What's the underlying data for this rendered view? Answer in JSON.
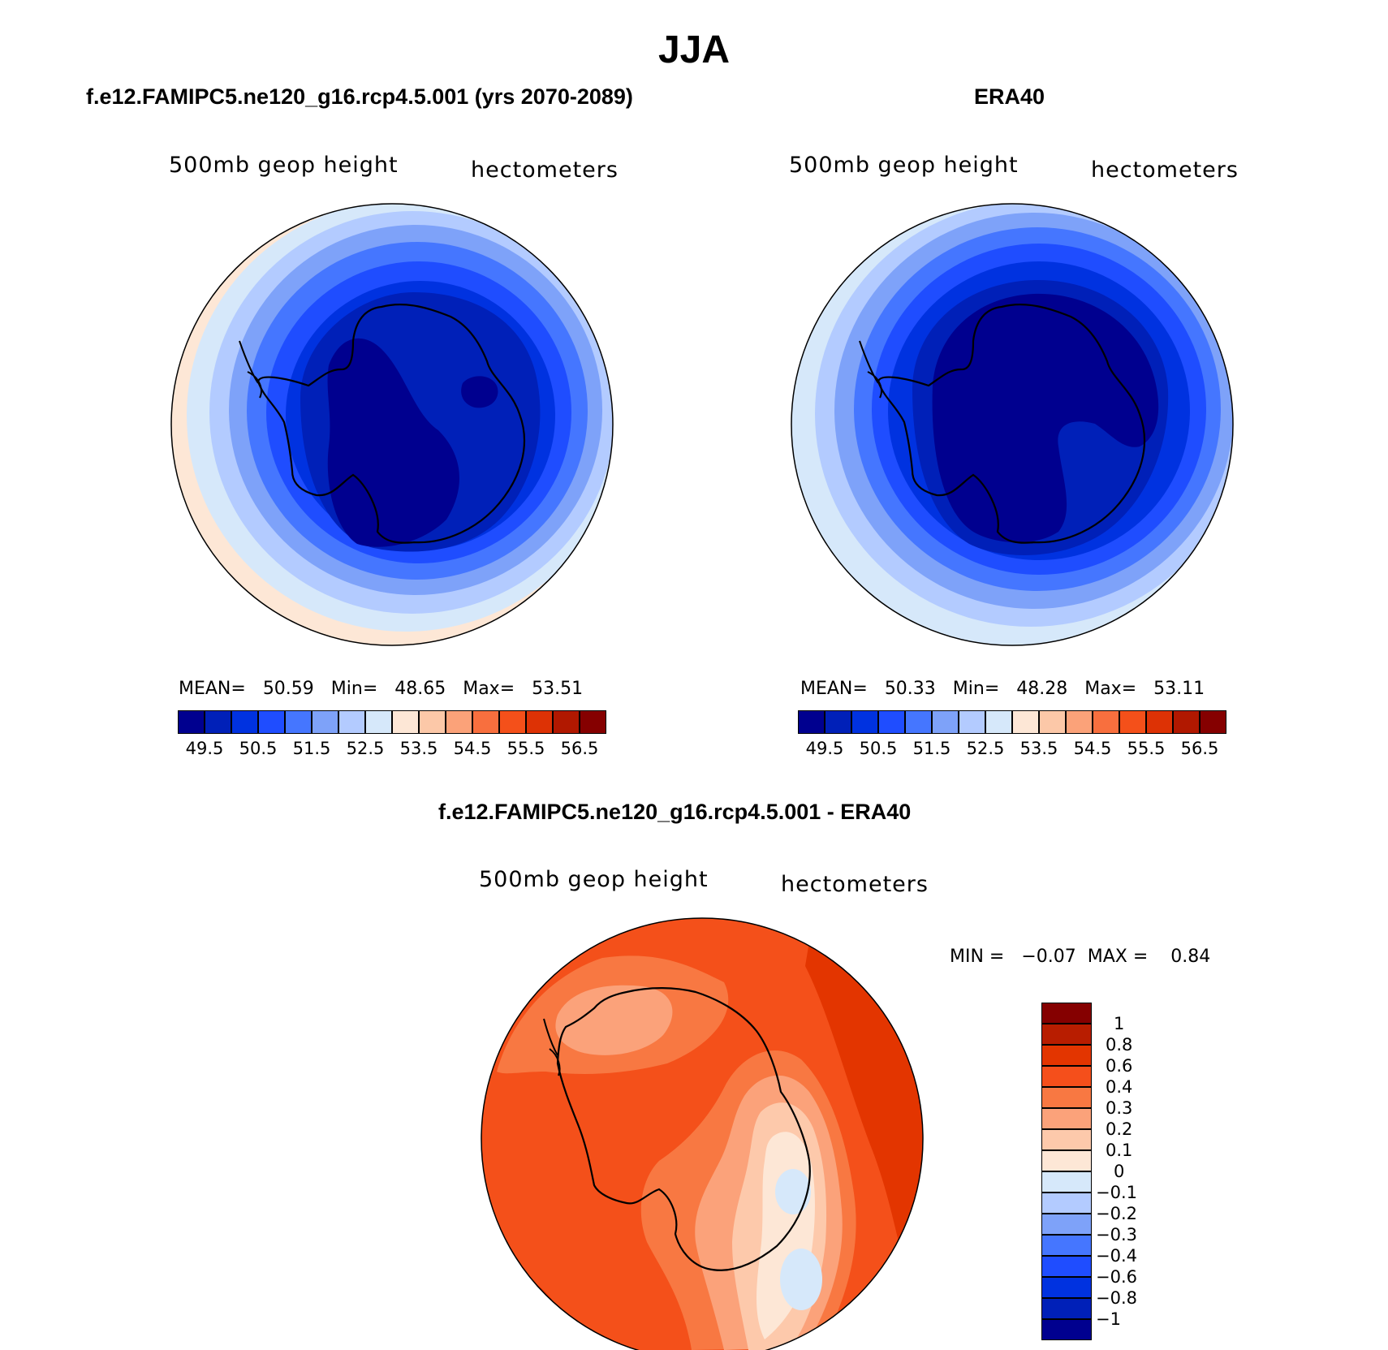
{
  "title": "JJA",
  "panels": {
    "model": {
      "title": "f.e12.FAMIPC5.ne120_g16.rcp4.5.001 (yrs 2070-2089)",
      "variable": "500mb geop height",
      "units": "hectometers",
      "mean_label": "MEAN=",
      "mean": "50.59",
      "min_label": "Min=",
      "min": "48.65",
      "max_label": "Max=",
      "max": "53.51"
    },
    "obs": {
      "title": "ERA40",
      "variable": "500mb geop height",
      "units": "hectometers",
      "mean_label": "MEAN=",
      "mean": "50.33",
      "min_label": "Min=",
      "min": "48.28",
      "max_label": "Max=",
      "max": "53.11"
    },
    "diff": {
      "title": "f.e12.FAMIPC5.ne120_g16.rcp4.5.001 - ERA40",
      "variable": "500mb geop height",
      "units": "hectometers",
      "min_label": "MIN =",
      "min": "−0.07",
      "max_label": "MAX =",
      "max": "0.84"
    }
  },
  "colorbar_abs": {
    "colors": [
      "#00008f",
      "#0020b8",
      "#0032e0",
      "#1f4dff",
      "#4576ff",
      "#7ea2f9",
      "#b3cbff",
      "#d6e8fa",
      "#fde7d6",
      "#fcc8a8",
      "#fba279",
      "#f86f3e",
      "#f4501a",
      "#dd3205",
      "#b11800",
      "#850000"
    ],
    "labels": [
      "49.5",
      "50.5",
      "51.5",
      "52.5",
      "53.5",
      "54.5",
      "55.5",
      "56.5"
    ]
  },
  "colorbar_diff": {
    "colors_top_to_bottom": [
      "#850000",
      "#b81d00",
      "#e33500",
      "#f54f1b",
      "#f87842",
      "#fba27a",
      "#fdc9ab",
      "#fde7d6",
      "#d6e8fa",
      "#b3cbff",
      "#7ea2f9",
      "#4576ff",
      "#1f4dff",
      "#0032e0",
      "#0020b8",
      "#00008f"
    ],
    "labels_top_to_bottom": [
      "1",
      "0.8",
      "0.6",
      "0.4",
      "0.3",
      "0.2",
      "0.1",
      "0",
      "−0.1",
      "−0.2",
      "−0.3",
      "−0.4",
      "−0.6",
      "−0.8",
      "−1"
    ]
  },
  "map_colors": {
    "ocean_outer": "#fde7d6",
    "diff_base": "#f4501a",
    "coast": "#000000"
  }
}
